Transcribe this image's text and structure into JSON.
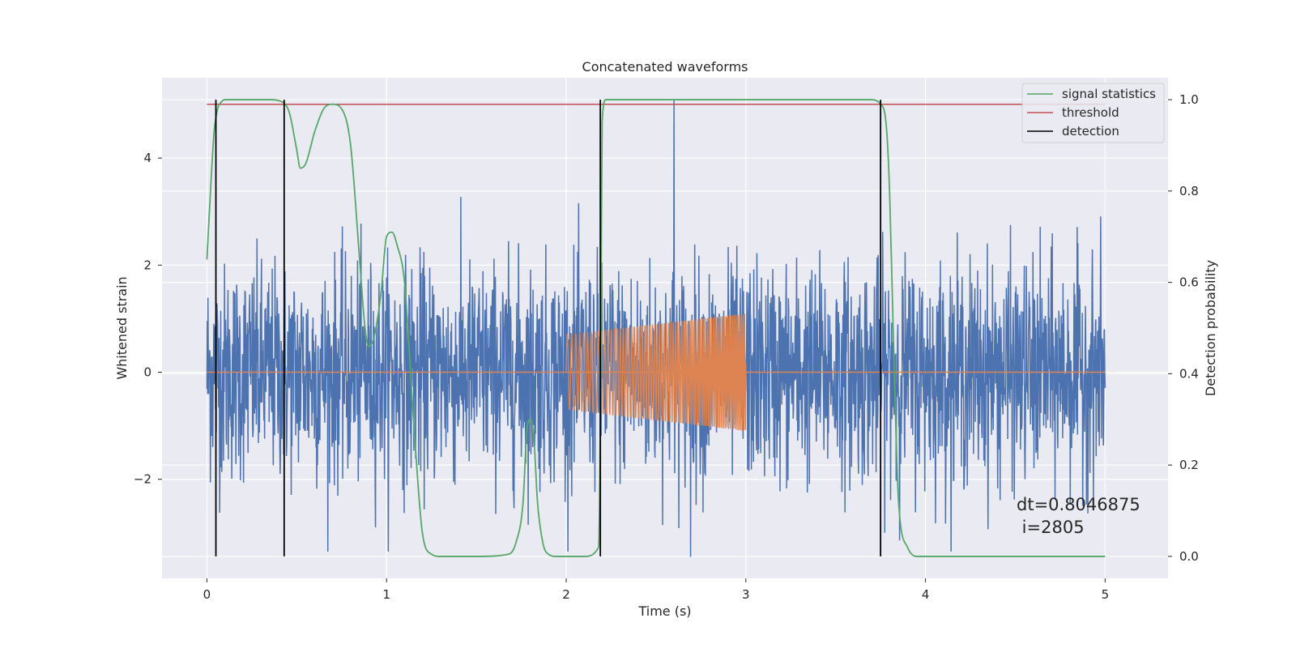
{
  "chart_data": {
    "type": "line",
    "title": "Concatenated waveforms",
    "xlabel": "Time (s)",
    "ylabel_left": "Whitened strain",
    "ylabel_right": "Detection probability",
    "xlim": [
      -0.25,
      5.35
    ],
    "ylim_left": [
      -3.85,
      5.5
    ],
    "ylim_right": [
      -0.048,
      1.048
    ],
    "x_ticks": [
      0,
      1,
      2,
      3,
      4,
      5
    ],
    "x_tick_labels": [
      "0",
      "1",
      "2",
      "3",
      "4",
      "5"
    ],
    "y_left_ticks": [
      -2,
      0,
      2,
      4
    ],
    "y_left_tick_labels": [
      "−2",
      "0",
      "2",
      "4"
    ],
    "y_right_ticks": [
      0.0,
      0.2,
      0.4,
      0.6,
      0.8,
      1.0
    ],
    "y_right_tick_labels": [
      "0.0",
      "0.2",
      "0.4",
      "0.6",
      "0.8",
      "1.0"
    ],
    "grid": true,
    "legend_position": "top-right",
    "legend": [
      {
        "name": "signal statistics",
        "color": "#55a868"
      },
      {
        "name": "threshold",
        "color": "#c44e52"
      },
      {
        "name": "detection",
        "color": "#000000"
      }
    ],
    "series": [
      {
        "name": "whitened strain",
        "axis": "left",
        "color": "#4c72b0",
        "x_range": [
          0,
          5
        ],
        "noise_rms": 1.0,
        "peak_max": 5.1,
        "peak_min": -3.45
      },
      {
        "name": "injected waveform",
        "axis": "left",
        "color": "#dd8452",
        "x_range": [
          2.0,
          3.0
        ],
        "amplitude_start": 0.7,
        "amplitude_end": 1.1,
        "flat_outside": 0
      },
      {
        "name": "signal statistics",
        "axis": "right",
        "color": "#55a868",
        "x": [
          0.0,
          0.02,
          0.04,
          0.06,
          0.08,
          0.1,
          0.15,
          0.25,
          0.35,
          0.42,
          0.46,
          0.5,
          0.52,
          0.55,
          0.6,
          0.65,
          0.7,
          0.75,
          0.8,
          0.85,
          0.88,
          0.9,
          0.93,
          0.97,
          1.0,
          1.03,
          1.06,
          1.1,
          1.15,
          1.2,
          1.25,
          1.3,
          1.5,
          1.68,
          1.72,
          1.76,
          1.78,
          1.8,
          1.82,
          1.84,
          1.87,
          1.9,
          1.95,
          2.1,
          2.18,
          2.19,
          2.2,
          2.22,
          2.3,
          3.0,
          3.7,
          3.75,
          3.78,
          3.8,
          3.82,
          3.85,
          3.9,
          3.95,
          4.5,
          5.0
        ],
        "y": [
          0.65,
          0.8,
          0.93,
          0.98,
          0.995,
          1.0,
          1.0,
          1.0,
          1.0,
          0.995,
          0.97,
          0.89,
          0.85,
          0.86,
          0.93,
          0.98,
          0.99,
          0.98,
          0.9,
          0.65,
          0.5,
          0.46,
          0.48,
          0.58,
          0.7,
          0.71,
          0.68,
          0.6,
          0.3,
          0.05,
          0.005,
          0.0,
          0.0,
          0.005,
          0.03,
          0.12,
          0.27,
          0.3,
          0.26,
          0.12,
          0.03,
          0.005,
          0.0,
          0.0,
          0.02,
          0.3,
          0.95,
          1.0,
          1.0,
          1.0,
          1.0,
          0.99,
          0.95,
          0.8,
          0.5,
          0.12,
          0.02,
          0.0,
          0.0,
          0.0
        ]
      },
      {
        "name": "threshold",
        "axis": "right",
        "color": "#c44e52",
        "x": [
          0.0,
          5.0
        ],
        "y": [
          0.99,
          0.99
        ]
      }
    ],
    "detections": {
      "name": "detection",
      "color": "#000000",
      "x": [
        0.05,
        0.43,
        2.19,
        3.75
      ]
    },
    "annotation": {
      "line1": "dt=0.8046875",
      "line2": " i=2805"
    }
  }
}
